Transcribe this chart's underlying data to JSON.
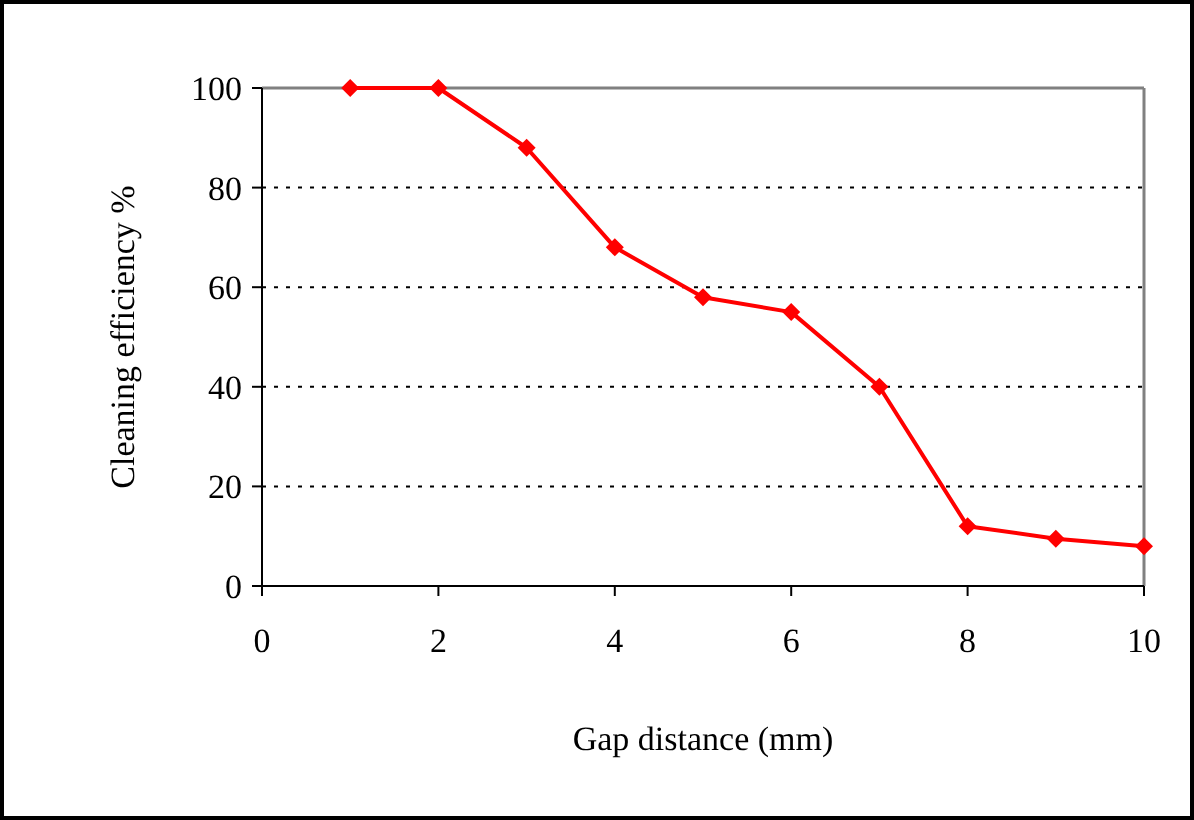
{
  "chart_data": {
    "type": "line",
    "xlabel": "Gap distance (mm)",
    "ylabel": "Cleaning efficiency %",
    "x": [
      1,
      2,
      3,
      4,
      5,
      6,
      7,
      8,
      9,
      10
    ],
    "series": [
      {
        "color": "#ff0000",
        "values": [
          100,
          100,
          88,
          68,
          58,
          55,
          40,
          12,
          9.5,
          8
        ]
      }
    ],
    "xlim": [
      0,
      10
    ],
    "xticks": [
      0,
      2,
      4,
      6,
      8,
      10
    ],
    "ylim": [
      0,
      100
    ],
    "yticks": [
      0,
      20,
      40,
      60,
      80,
      100
    ],
    "grid": "y",
    "marker": "diamond",
    "line_style": "solid"
  }
}
